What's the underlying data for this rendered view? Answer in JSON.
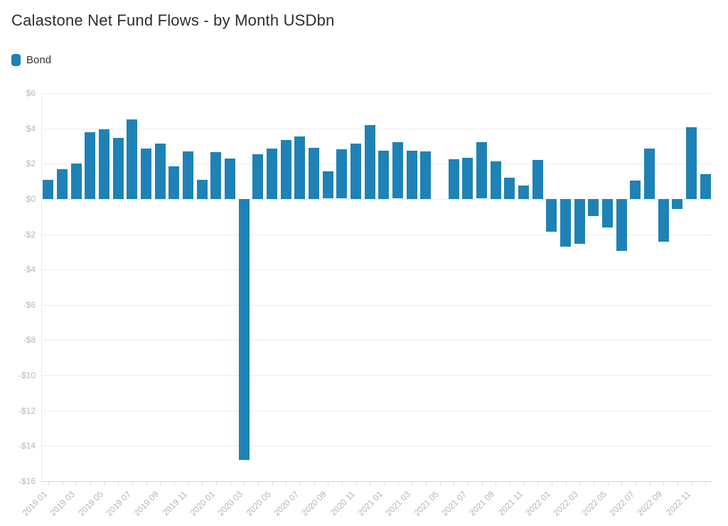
{
  "title": "Calastone Net Fund Flows - by Month USDbn",
  "legend": {
    "label": "Bond",
    "color": "#1e82b6"
  },
  "chart_data": {
    "type": "bar",
    "title": "Calastone Net Fund Flows - by Month USDbn",
    "unit": "USDbn",
    "legend_position": "top-left",
    "grid": true,
    "ylim": [
      -16,
      6
    ],
    "y_ticks": [
      6,
      4,
      2,
      0,
      -2,
      -4,
      -6,
      -8,
      -10,
      -12,
      -14,
      -16
    ],
    "y_tick_labels": [
      "$6",
      "$4",
      "$2",
      "$0",
      "-$2",
      "-$4",
      "-$6",
      "-$8",
      "-$10",
      "-$12",
      "-$14",
      "-$16"
    ],
    "categories": [
      "2019 01",
      "2019 02",
      "2019 03",
      "2019 04",
      "2019 05",
      "2019 06",
      "2019 07",
      "2019 08",
      "2019 09",
      "2019 10",
      "2019 11",
      "2019 12",
      "2020 01",
      "2020 02",
      "2020 03",
      "2020 04",
      "2020 05",
      "2020 06",
      "2020 07",
      "2020 08",
      "2020 09",
      "2020 10",
      "2020 11",
      "2020 12",
      "2021 01",
      "2021 02",
      "2021 03",
      "2021 04",
      "2021 05",
      "2021 06",
      "2021 07",
      "2021 08",
      "2021 09",
      "2021 10",
      "2021 11",
      "2021 12",
      "2022 01",
      "2022 02",
      "2022 03",
      "2022 04",
      "2022 05",
      "2022 06",
      "2022 07",
      "2022 08",
      "2022 09",
      "2022 10",
      "2022 11",
      "2022 12"
    ],
    "x_tick_labels": [
      "2019 01",
      "2019 03",
      "2019 05",
      "2019 07",
      "2019 09",
      "2019 11",
      "2020 01",
      "2020 03",
      "2020 05",
      "2020 07",
      "2020 09",
      "2020 11",
      "2021 01",
      "2021 03",
      "2021 05",
      "2021 07",
      "2021 09",
      "2021 11",
      "2022 01",
      "2022 03",
      "2022 05",
      "2022 07",
      "2022 09",
      "2022 11"
    ],
    "series": [
      {
        "name": "Bond",
        "color": "#1e82b6",
        "values": [
          1.1,
          1.7,
          2.0,
          3.8,
          3.95,
          3.45,
          4.5,
          2.85,
          3.15,
          1.85,
          2.7,
          1.1,
          2.65,
          2.3,
          -14.8,
          2.55,
          2.85,
          3.35,
          3.55,
          2.9,
          1.55,
          2.8,
          3.15,
          4.2,
          2.75,
          3.2,
          2.75,
          2.7,
          0,
          2.25,
          2.35,
          3.2,
          2.15,
          1.2,
          0.75,
          2.2,
          -1.85,
          -2.7,
          -2.55,
          -0.95,
          -1.6,
          -2.95,
          1.05,
          2.85,
          -2.4,
          -0.55,
          4.05,
          1.4
        ]
      }
    ]
  }
}
